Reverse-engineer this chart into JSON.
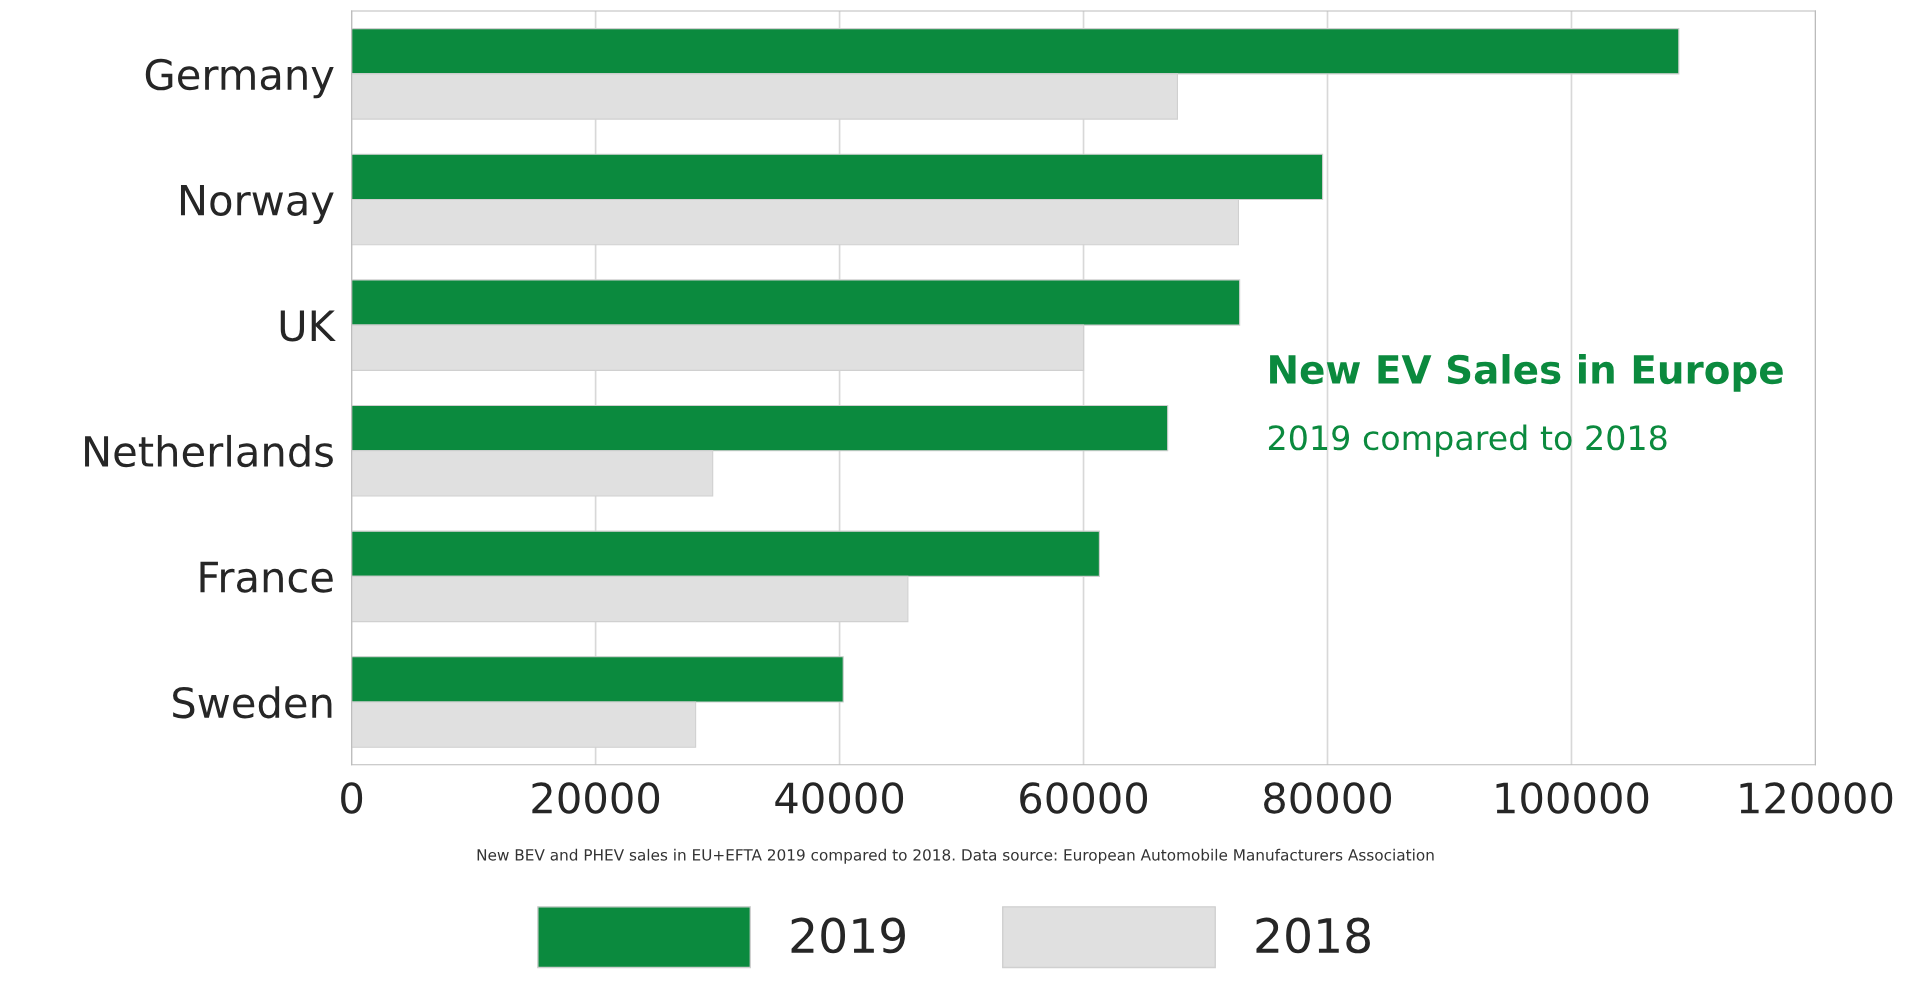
{
  "chart_data": {
    "type": "bar",
    "orientation": "horizontal",
    "title": "New EV Sales in Europe",
    "subtitle": "2019 compared to 2018",
    "categories": [
      "Germany",
      "Norway",
      "UK",
      "Netherlands",
      "France",
      "Sweden"
    ],
    "series": [
      {
        "name": "2019",
        "color": "#0b8a3e",
        "values": [
          108800,
          79600,
          72800,
          66900,
          61300,
          40300
        ]
      },
      {
        "name": "2018",
        "color": "#e0e0e0",
        "values": [
          67700,
          72700,
          60000,
          29600,
          45600,
          28200
        ]
      }
    ],
    "xlim": [
      0,
      120000
    ],
    "xticks": [
      0,
      20000,
      40000,
      60000,
      80000,
      100000,
      120000
    ],
    "grid": "x",
    "legend": "bottom",
    "annotations": [
      "New BEV and PHEV sales in EU+EFTA 2019 compared to 2018. Data source: European Automobile Manufacturers Association"
    ]
  }
}
